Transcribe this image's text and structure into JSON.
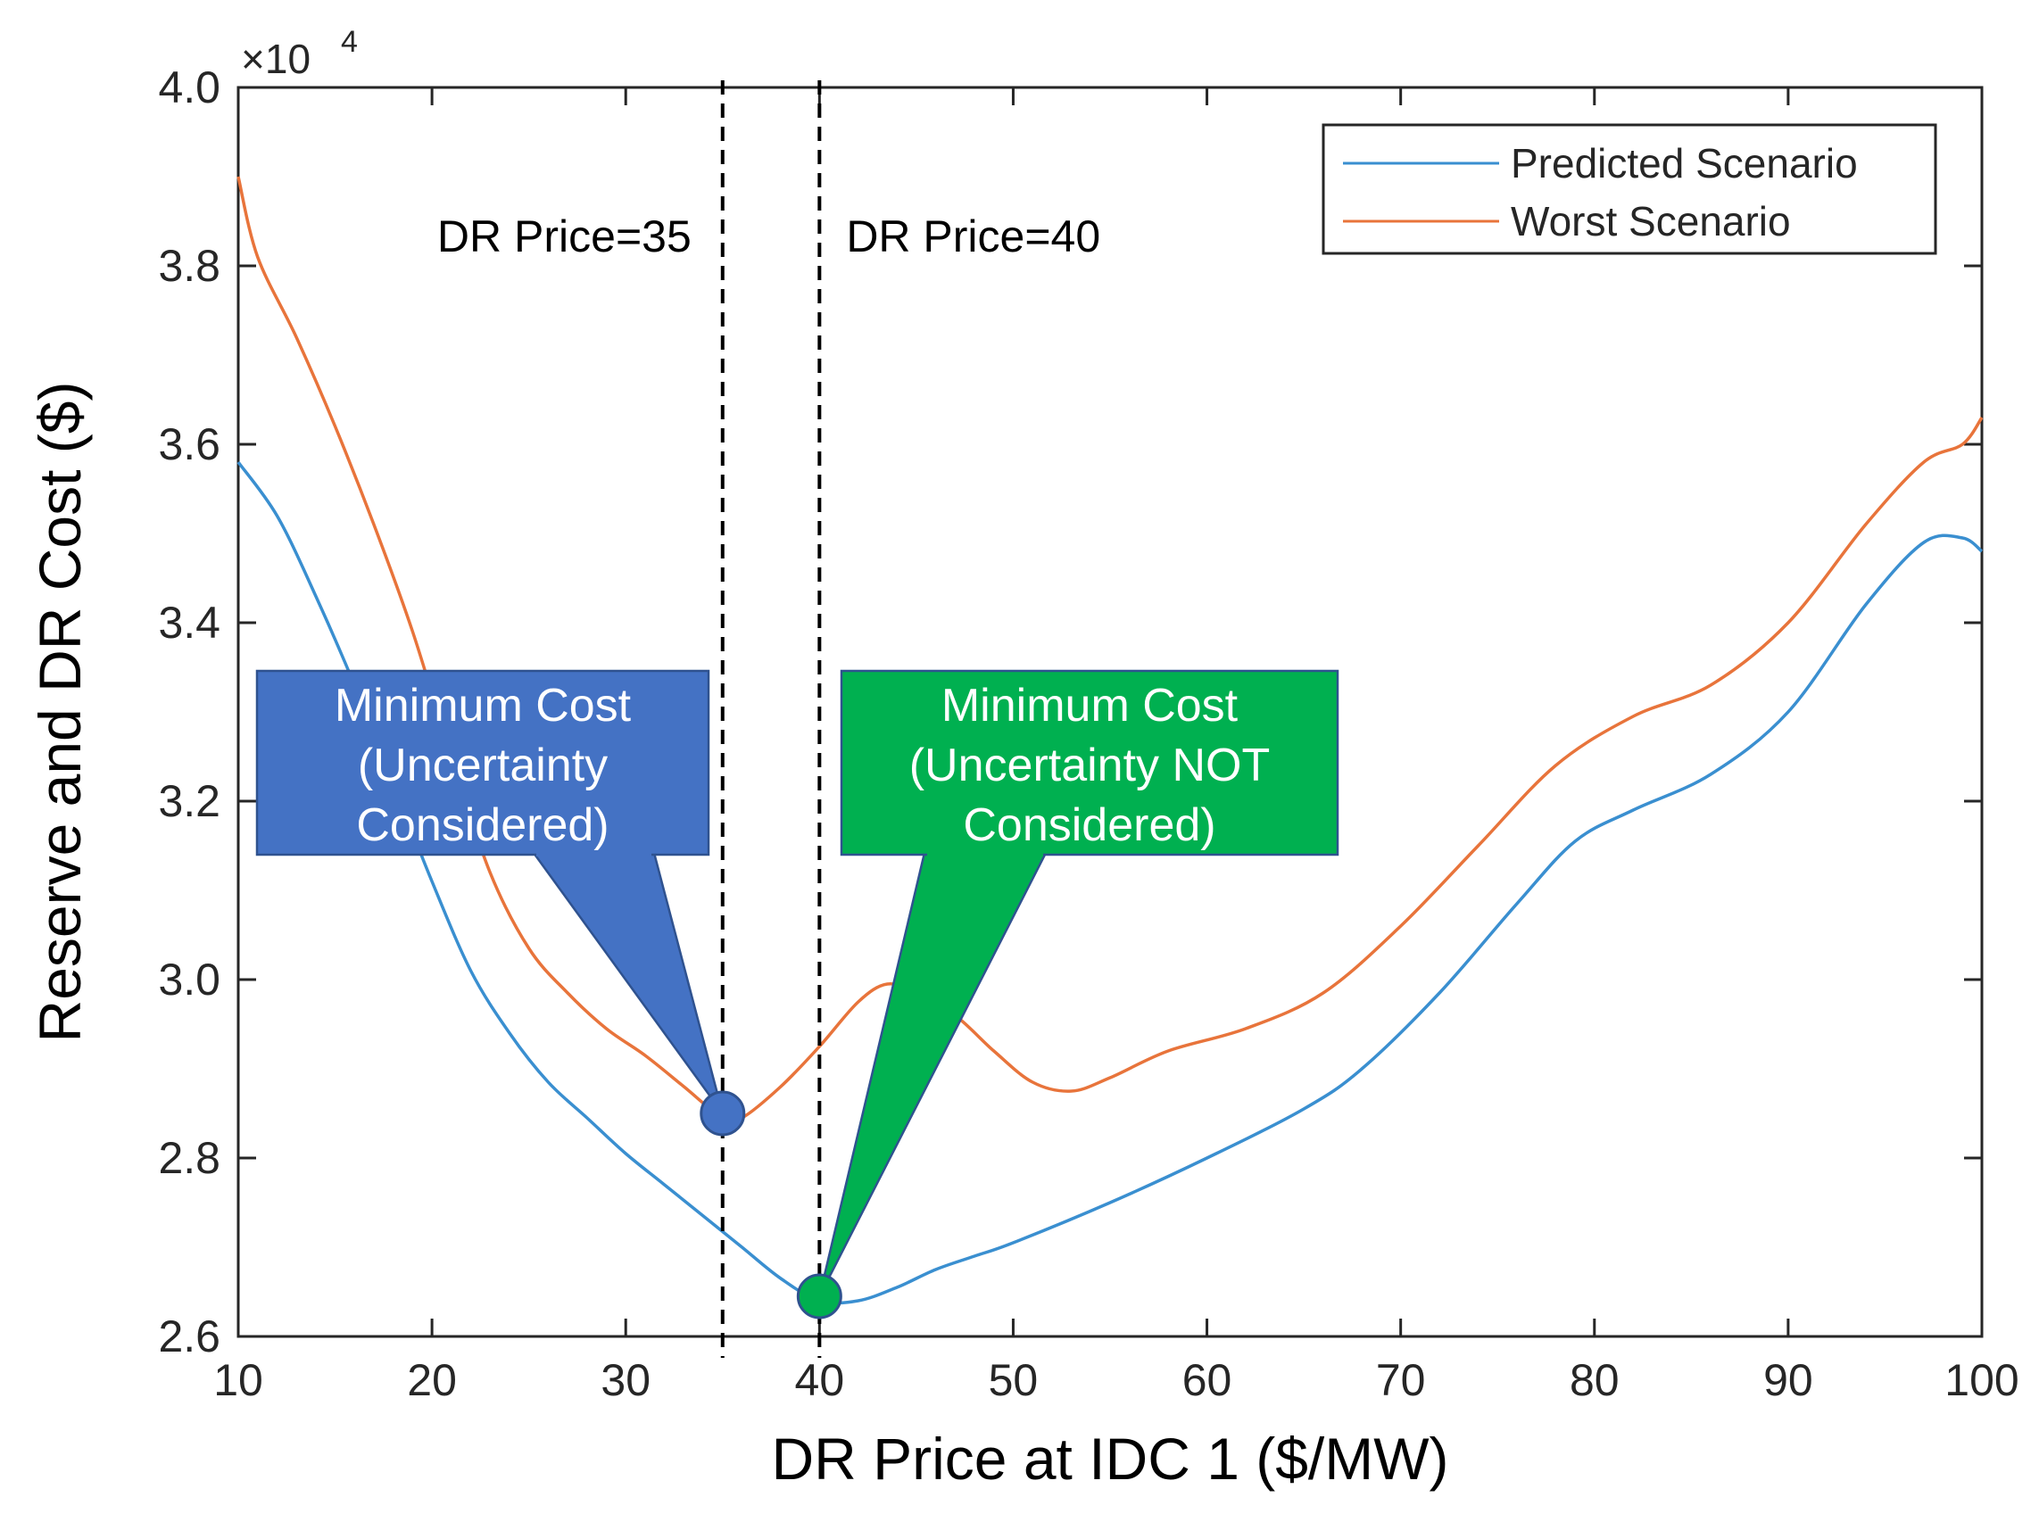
{
  "chart_data": {
    "type": "line",
    "xlabel": "DR Price at IDC 1 ($/MW)",
    "ylabel": "Reserve and DR Cost ($)",
    "xlim": [
      10,
      100
    ],
    "ylim": [
      2.6,
      4.0
    ],
    "y_multiplier": "×10",
    "y_multiplier_exp": "4",
    "xticks": [
      10,
      20,
      30,
      40,
      50,
      60,
      70,
      80,
      90,
      100
    ],
    "xtick_labels": [
      "10",
      "20",
      "30",
      "40",
      "50",
      "60",
      "70",
      "80",
      "90",
      "100"
    ],
    "yticks": [
      2.6,
      2.8,
      3.0,
      3.2,
      3.4,
      3.6,
      3.8,
      4.0
    ],
    "ytick_labels": [
      "2.6",
      "2.8",
      "3.0",
      "3.2",
      "3.4",
      "3.6",
      "3.8",
      "4.0"
    ],
    "grid": false,
    "legend_position": "top-right",
    "series": [
      {
        "name": "Predicted Scenario",
        "color": "#3a8fd0",
        "points": [
          [
            10,
            3.58
          ],
          [
            12,
            3.52
          ],
          [
            14,
            3.43
          ],
          [
            16,
            3.33
          ],
          [
            18,
            3.22
          ],
          [
            20,
            3.11
          ],
          [
            22,
            3.01
          ],
          [
            24,
            2.94
          ],
          [
            26,
            2.885
          ],
          [
            28,
            2.845
          ],
          [
            30,
            2.805
          ],
          [
            32,
            2.77
          ],
          [
            34,
            2.735
          ],
          [
            36,
            2.7
          ],
          [
            38,
            2.665
          ],
          [
            40,
            2.64
          ],
          [
            42,
            2.64
          ],
          [
            44,
            2.655
          ],
          [
            46,
            2.675
          ],
          [
            48,
            2.69
          ],
          [
            50,
            2.705
          ],
          [
            55,
            2.75
          ],
          [
            60,
            2.8
          ],
          [
            65,
            2.855
          ],
          [
            68,
            2.9
          ],
          [
            72,
            2.985
          ],
          [
            76,
            3.085
          ],
          [
            79,
            3.155
          ],
          [
            82,
            3.19
          ],
          [
            86,
            3.23
          ],
          [
            90,
            3.3
          ],
          [
            94,
            3.42
          ],
          [
            97,
            3.49
          ],
          [
            99,
            3.495
          ],
          [
            100,
            3.48
          ]
        ]
      },
      {
        "name": "Worst Scenario",
        "color": "#e8743b",
        "points": [
          [
            10,
            3.9
          ],
          [
            11,
            3.81
          ],
          [
            13,
            3.72
          ],
          [
            15,
            3.62
          ],
          [
            17,
            3.51
          ],
          [
            19,
            3.39
          ],
          [
            21,
            3.25
          ],
          [
            23,
            3.12
          ],
          [
            25,
            3.035
          ],
          [
            27,
            2.985
          ],
          [
            29,
            2.945
          ],
          [
            31,
            2.915
          ],
          [
            33,
            2.88
          ],
          [
            35,
            2.845
          ],
          [
            36,
            2.845
          ],
          [
            38,
            2.88
          ],
          [
            40,
            2.925
          ],
          [
            42,
            2.975
          ],
          [
            43.5,
            2.995
          ],
          [
            45,
            2.985
          ],
          [
            47,
            2.96
          ],
          [
            49,
            2.92
          ],
          [
            51,
            2.885
          ],
          [
            53,
            2.875
          ],
          [
            55,
            2.89
          ],
          [
            58,
            2.92
          ],
          [
            62,
            2.945
          ],
          [
            66,
            2.985
          ],
          [
            70,
            3.06
          ],
          [
            74,
            3.15
          ],
          [
            78,
            3.24
          ],
          [
            82,
            3.295
          ],
          [
            86,
            3.33
          ],
          [
            90,
            3.4
          ],
          [
            94,
            3.51
          ],
          [
            97,
            3.58
          ],
          [
            99,
            3.6
          ],
          [
            100,
            3.63
          ]
        ]
      }
    ],
    "vlines": [
      {
        "x": 35,
        "label": "DR Price=35"
      },
      {
        "x": 40,
        "label": "DR Price=40"
      }
    ],
    "callouts": [
      {
        "name": "uncertainty-considered",
        "lines": [
          "Minimum Cost",
          "(Uncertainty",
          "Considered)"
        ],
        "fill": "#4472c4",
        "border": "#2f528f",
        "point": [
          35,
          2.85
        ]
      },
      {
        "name": "uncertainty-not-considered",
        "lines": [
          "Minimum Cost",
          "(Uncertainty NOT",
          "Considered)"
        ],
        "fill": "#00b050",
        "border": "#2f528f",
        "point": [
          40,
          2.645
        ]
      }
    ]
  }
}
